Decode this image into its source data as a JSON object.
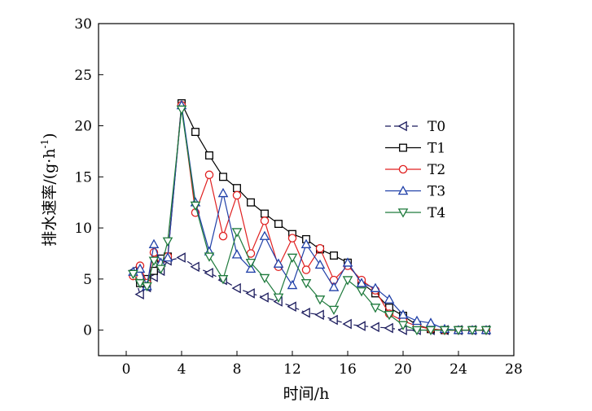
{
  "chart_data": {
    "type": "line",
    "title": "",
    "xlabel": "时间/h",
    "ylabel_main": "排水速率/(g·h",
    "ylabel_sup": "-1",
    "ylabel_close": ")",
    "xlim": [
      -2,
      28
    ],
    "ylim": [
      -2.5,
      30
    ],
    "xticks": [
      0,
      4,
      8,
      12,
      16,
      20,
      24,
      28
    ],
    "yticks": [
      0,
      5,
      10,
      15,
      20,
      25,
      30
    ],
    "grid": false,
    "legend_position": "right",
    "series": [
      {
        "name": "T0",
        "color": "#1a1a5c",
        "marker": "triangle-left",
        "dash": true,
        "x": [
          0.5,
          1.0,
          1.5,
          2.0,
          2.5,
          3.0,
          4.0,
          5.0,
          6.0,
          7.0,
          8.0,
          9.0,
          10.0,
          11.0,
          12.0,
          13.0,
          14.0,
          15.0,
          16.0,
          17.0,
          18.0,
          19.0,
          20.0,
          21.0,
          22.0,
          23.0,
          24.0,
          25.0,
          26.0
        ],
        "y": [
          5.8,
          3.5,
          4.2,
          5.2,
          5.8,
          6.8,
          7.1,
          6.2,
          5.6,
          4.9,
          4.1,
          3.6,
          3.2,
          2.8,
          2.3,
          1.7,
          1.5,
          1.0,
          0.6,
          0.4,
          0.3,
          0.2,
          0.0,
          0.0,
          0.0,
          0.0,
          0.0,
          0.0,
          0.0
        ]
      },
      {
        "name": "T1",
        "color": "#000000",
        "marker": "square",
        "dash": false,
        "x": [
          1.0,
          1.5,
          2.0,
          2.5,
          3.0,
          4.0,
          5.0,
          6.0,
          7.0,
          8.0,
          9.0,
          10.0,
          11.0,
          12.0,
          13.0,
          14.0,
          15.0,
          16.0,
          17.0,
          18.0,
          19.0,
          20.0,
          21.0,
          22.0,
          23.0,
          24.0,
          25.0,
          26.0
        ],
        "y": [
          4.6,
          5.0,
          5.8,
          7.0,
          7.2,
          22.2,
          19.4,
          17.1,
          15.0,
          13.9,
          12.5,
          11.4,
          10.4,
          9.4,
          8.9,
          7.9,
          7.3,
          6.6,
          4.6,
          3.6,
          2.2,
          1.4,
          0.5,
          0.1,
          0.0,
          0.0,
          0.0,
          0.0
        ]
      },
      {
        "name": "T2",
        "color": "#e02020",
        "marker": "circle",
        "dash": false,
        "x": [
          0.5,
          1.0,
          1.5,
          2.0,
          2.5,
          3.0,
          4.0,
          5.0,
          6.0,
          7.0,
          8.0,
          9.0,
          10.0,
          11.0,
          12.0,
          13.0,
          14.0,
          15.0,
          16.0,
          17.0,
          18.0,
          19.0,
          20.0,
          21.0,
          22.0,
          23.0,
          24.0,
          25.0,
          26.0
        ],
        "y": [
          5.3,
          6.3,
          4.6,
          7.6,
          6.3,
          7.2,
          22.0,
          11.5,
          15.2,
          9.2,
          13.2,
          7.5,
          10.7,
          6.2,
          9.0,
          5.9,
          8.0,
          4.9,
          6.3,
          4.9,
          3.9,
          1.6,
          0.9,
          0.4,
          0.1,
          0.0,
          0.0,
          0.0,
          0.0
        ]
      },
      {
        "name": "T3",
        "color": "#2040a8",
        "marker": "triangle-up",
        "dash": false,
        "x": [
          0.5,
          1.0,
          1.5,
          2.0,
          2.5,
          3.0,
          4.0,
          5.0,
          6.0,
          7.0,
          8.0,
          9.0,
          10.0,
          11.0,
          12.0,
          13.0,
          14.0,
          15.0,
          16.0,
          17.0,
          18.0,
          19.0,
          20.0,
          21.0,
          22.0,
          23.0,
          24.0,
          25.0,
          26.0
        ],
        "y": [
          5.7,
          6.0,
          4.3,
          8.4,
          6.6,
          7.1,
          22.0,
          12.5,
          7.7,
          13.4,
          7.4,
          6.0,
          9.2,
          6.5,
          4.4,
          8.4,
          6.4,
          4.2,
          6.6,
          4.6,
          4.1,
          3.0,
          1.5,
          0.9,
          0.7,
          0.1,
          0.0,
          0.0,
          0.0
        ]
      },
      {
        "name": "T4",
        "color": "#1e7a3c",
        "marker": "triangle-down",
        "dash": false,
        "x": [
          0.5,
          1.0,
          1.5,
          2.0,
          2.5,
          3.0,
          4.0,
          5.0,
          6.0,
          7.0,
          8.0,
          9.0,
          10.0,
          11.0,
          12.0,
          13.0,
          14.0,
          15.0,
          16.0,
          17.0,
          18.0,
          19.0,
          20.0,
          21.0,
          22.0,
          23.0,
          24.0,
          25.0,
          26.0
        ],
        "y": [
          5.5,
          4.6,
          4.3,
          6.8,
          6.0,
          8.7,
          21.6,
          12.2,
          7.2,
          5.0,
          9.6,
          6.6,
          5.1,
          3.2,
          7.1,
          4.6,
          3.0,
          2.0,
          4.9,
          3.8,
          2.2,
          1.5,
          0.5,
          0.0,
          0.0,
          0.0,
          0.0,
          0.0,
          0.0
        ]
      }
    ]
  }
}
